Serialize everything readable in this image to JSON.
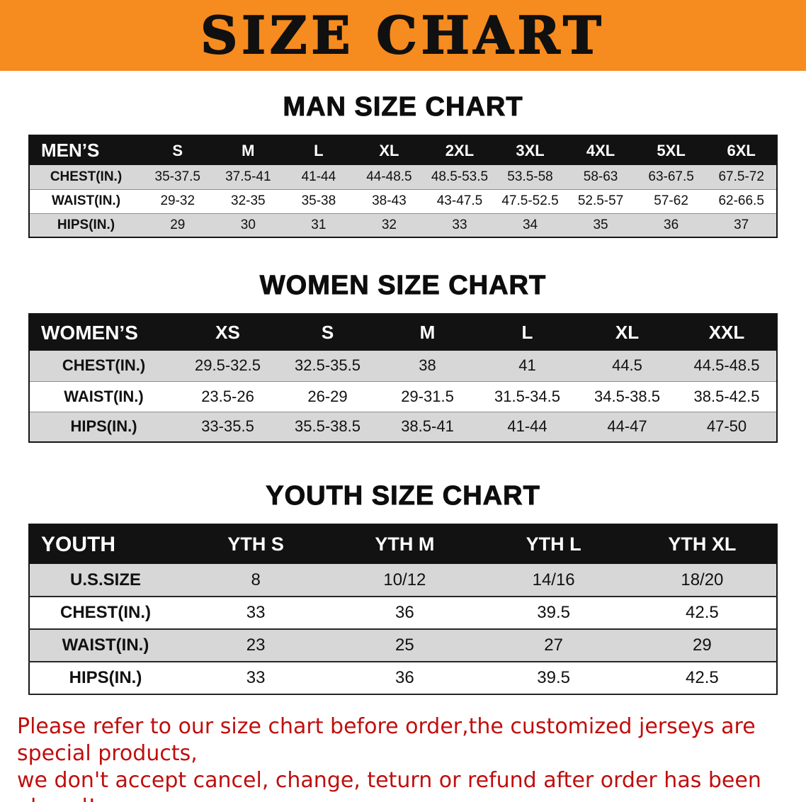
{
  "banner": {
    "title": "SIZE CHART",
    "bg_color": "#F68B1F"
  },
  "men": {
    "heading": "MAN SIZE CHART",
    "label": "MEN’S",
    "columns": [
      "S",
      "M",
      "L",
      "XL",
      "2XL",
      "3XL",
      "4XL",
      "5XL",
      "6XL"
    ],
    "rows": [
      {
        "label": "CHEST(IN.)",
        "values": [
          "35-37.5",
          "37.5-41",
          "41-44",
          "44-48.5",
          "48.5-53.5",
          "53.5-58",
          "58-63",
          "63-67.5",
          "67.5-72"
        ]
      },
      {
        "label": "WAIST(IN.)",
        "values": [
          "29-32",
          "32-35",
          "35-38",
          "38-43",
          "43-47.5",
          "47.5-52.5",
          "52.5-57",
          "57-62",
          "62-66.5"
        ]
      },
      {
        "label": "HIPS(IN.)",
        "values": [
          "29",
          "30",
          "31",
          "32",
          "33",
          "34",
          "35",
          "36",
          "37"
        ]
      }
    ]
  },
  "women": {
    "heading": "WOMEN SIZE CHART",
    "label": "WOMEN’S",
    "columns": [
      "XS",
      "S",
      "M",
      "L",
      "XL",
      "XXL"
    ],
    "rows": [
      {
        "label": "CHEST(IN.)",
        "values": [
          "29.5-32.5",
          "32.5-35.5",
          "38",
          "41",
          "44.5",
          "44.5-48.5"
        ]
      },
      {
        "label": "WAIST(IN.)",
        "values": [
          "23.5-26",
          "26-29",
          "29-31.5",
          "31.5-34.5",
          "34.5-38.5",
          "38.5-42.5"
        ]
      },
      {
        "label": "HIPS(IN.)",
        "values": [
          "33-35.5",
          "35.5-38.5",
          "38.5-41",
          "41-44",
          "44-47",
          "47-50"
        ]
      }
    ]
  },
  "youth": {
    "heading": "YOUTH SIZE CHART",
    "label": "YOUTH",
    "columns": [
      "YTH S",
      "YTH M",
      "YTH L",
      "YTH XL"
    ],
    "rows": [
      {
        "label": "U.S.SIZE",
        "values": [
          "8",
          "10/12",
          "14/16",
          "18/20"
        ]
      },
      {
        "label": "CHEST(IN.)",
        "values": [
          "33",
          "36",
          "39.5",
          "42.5"
        ]
      },
      {
        "label": "WAIST(IN.)",
        "values": [
          "23",
          "25",
          "27",
          "29"
        ]
      },
      {
        "label": "HIPS(IN.)",
        "values": [
          "33",
          "36",
          "39.5",
          "42.5"
        ]
      }
    ]
  },
  "disclaimer": {
    "line1": "Please refer to our size chart before order,the customized jerseys are special products,",
    "line2": "we don't accept cancel, change, teturn or refund after order has been placed!",
    "color": "#C00E0E"
  }
}
